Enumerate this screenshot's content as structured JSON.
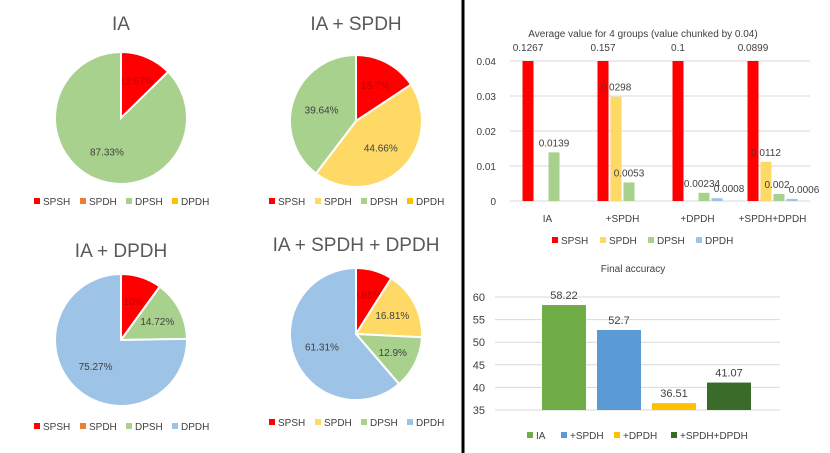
{
  "colors": {
    "SPSH": "#ff0000",
    "SPDH": "#ffd966",
    "DPSH": "#a9d18e",
    "DPDH": "#9dc3e6",
    "SPDH_legend_pie1": "#ed7d31",
    "SPDH_legend_pie3": "#ed7d31",
    "DPDH_legend_pie1": "#ffc000",
    "acc_IA": "#70ad47",
    "acc_SPDH": "#5b9bd5",
    "acc_DPDH": "#ffc000",
    "acc_SPDH_DPDH": "#3a6b28"
  },
  "chart_data": [
    {
      "type": "pie",
      "title": "IA",
      "slices": [
        {
          "name": "SPSH",
          "value": 12.67,
          "label": "12.67%"
        },
        {
          "name": "DPSH",
          "value": 87.33,
          "label": "87.33%"
        }
      ],
      "legend": [
        "SPSH",
        "SPDH",
        "DPSH",
        "DPDH"
      ]
    },
    {
      "type": "pie",
      "title": "IA + SPDH",
      "slices": [
        {
          "name": "SPSH",
          "value": 15.7,
          "label": "15.7%"
        },
        {
          "name": "SPDH",
          "value": 44.66,
          "label": "44.66%"
        },
        {
          "name": "DPSH",
          "value": 39.64,
          "label": "39.64%"
        }
      ],
      "legend": [
        "SPSH",
        "SPDH",
        "DPSH",
        "DPDH"
      ]
    },
    {
      "type": "pie",
      "title": "IA + DPDH",
      "slices": [
        {
          "name": "SPSH",
          "value": 10.0,
          "label": "10%"
        },
        {
          "name": "DPSH",
          "value": 14.72,
          "label": "14.72%"
        },
        {
          "name": "DPDH",
          "value": 75.27,
          "label": "75.27%"
        }
      ],
      "legend": [
        "SPSH",
        "SPDH",
        "DPSH",
        "DPDH"
      ]
    },
    {
      "type": "pie",
      "title": "IA + SPDH + DPDH",
      "slices": [
        {
          "name": "SPSH",
          "value": 8.98,
          "label": "8.98%"
        },
        {
          "name": "SPDH",
          "value": 16.81,
          "label": "16.81%"
        },
        {
          "name": "DPSH",
          "value": 12.9,
          "label": "12.9%"
        },
        {
          "name": "DPDH",
          "value": 61.31,
          "label": "61.31%"
        }
      ],
      "legend": [
        "SPSH",
        "SPDH",
        "DPSH",
        "DPDH"
      ]
    },
    {
      "type": "bar",
      "title": "Average value for 4 groups (value chunked by 0.04)",
      "categories": [
        "IA",
        "+SPDH",
        "+DPDH",
        "+SPDH+DPDH"
      ],
      "ylim": [
        0,
        0.04
      ],
      "yticks": [
        "0",
        "0.01",
        "0.02",
        "0.03",
        "0.04"
      ],
      "series": [
        {
          "name": "SPSH",
          "values": [
            0.1267,
            0.157,
            0.1,
            0.0899
          ],
          "labels": [
            "0.1267",
            "0.157",
            "0.1",
            "0.0899"
          ]
        },
        {
          "name": "SPDH",
          "values": [
            0,
            0.0298,
            0,
            0.0112
          ],
          "labels": [
            "",
            "0.0298",
            "",
            "0.0112"
          ]
        },
        {
          "name": "DPSH",
          "values": [
            0.0139,
            0.0053,
            0.00234,
            0.002
          ],
          "labels": [
            "0.0139",
            "0.0053",
            "0.00234",
            "0.002"
          ]
        },
        {
          "name": "DPDH",
          "values": [
            0,
            0,
            0.0008,
            0.0006
          ],
          "labels": [
            "",
            "",
            "0.0008",
            "0.0006"
          ]
        }
      ]
    },
    {
      "type": "bar",
      "title": "Final accuracy",
      "categories": [
        "IA",
        "+SPDH",
        "+DPDH",
        "+SPDH+DPDH"
      ],
      "values": [
        58.22,
        52.7,
        36.51,
        41.07
      ],
      "labels": [
        "58.22",
        "52.7",
        "36.51",
        "41.07"
      ],
      "ylim": [
        35,
        60
      ],
      "yticks": [
        "35",
        "40",
        "45",
        "50",
        "55",
        "60"
      ]
    }
  ]
}
